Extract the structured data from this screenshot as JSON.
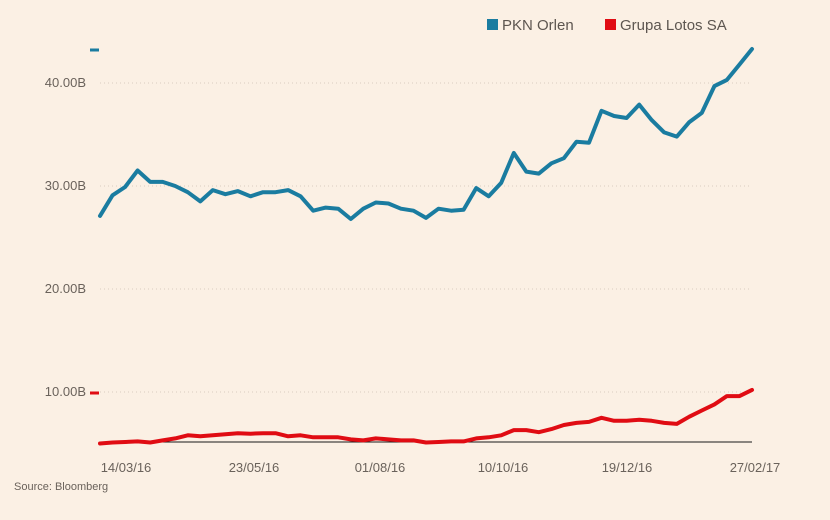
{
  "chart_data": {
    "type": "line",
    "source": "Source: Bloomberg",
    "ylim": [
      0,
      45
    ],
    "y_ticks": [
      10,
      20,
      30,
      40
    ],
    "y_tick_labels": [
      "10.00B",
      "20.00B",
      "30.00B",
      "40.00B"
    ],
    "x_tick_labels": [
      "14/03/16",
      "23/05/16",
      "01/08/16",
      "10/10/16",
      "19/12/16",
      "27/02/17"
    ],
    "grid": "horizontal dotted",
    "legend_placement": "top-right",
    "series": [
      {
        "name": "PKN Orlen",
        "color": "#1a7ca0",
        "values": [
          27.1,
          29.1,
          29.9,
          31.5,
          30.4,
          30.4,
          30.0,
          29.4,
          28.5,
          29.6,
          29.2,
          29.5,
          29.0,
          29.4,
          29.4,
          29.6,
          29.0,
          27.6,
          27.9,
          27.8,
          26.8,
          27.8,
          28.4,
          28.3,
          27.8,
          27.6,
          26.9,
          27.8,
          27.6,
          27.7,
          29.8,
          29.0,
          30.3,
          33.2,
          31.4,
          31.2,
          32.2,
          32.7,
          34.3,
          34.2,
          37.3,
          36.8,
          36.6,
          37.9,
          36.4,
          35.2,
          34.8,
          36.2,
          37.1,
          39.7,
          40.3,
          41.8,
          43.3
        ]
      },
      {
        "name": "Grupa Lotos SA",
        "color": "#e00c13",
        "values": [
          0.0,
          0.1,
          0.15,
          0.2,
          0.1,
          0.3,
          0.5,
          0.8,
          0.7,
          0.8,
          0.9,
          1.0,
          0.95,
          1.0,
          1.0,
          0.7,
          0.8,
          0.6,
          0.6,
          0.6,
          0.4,
          0.3,
          0.5,
          0.4,
          0.3,
          0.3,
          0.1,
          0.15,
          0.2,
          0.2,
          0.5,
          0.6,
          0.8,
          1.3,
          1.3,
          1.1,
          1.4,
          1.8,
          2.0,
          2.1,
          2.5,
          2.2,
          2.2,
          2.3,
          2.2,
          2.0,
          1.9,
          2.6,
          3.2,
          3.8,
          4.6,
          4.6,
          5.2
        ]
      }
    ]
  }
}
